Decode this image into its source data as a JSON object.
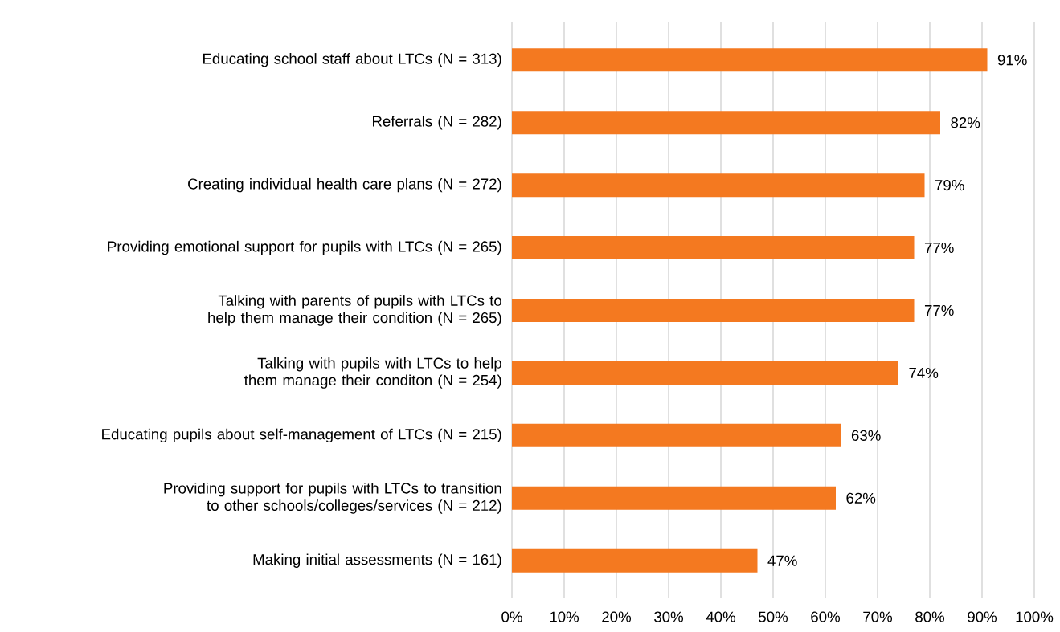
{
  "chart_data": {
    "type": "bar",
    "orientation": "horizontal",
    "categories": [
      "Educating school staff about LTCs (N = 313)",
      "Referrals (N = 282)",
      "Creating individual health care plans (N = 272)",
      "Providing emotional support for pupils with LTCs (N = 265)",
      "Talking with parents of pupils with LTCs to help them manage their condition (N = 265)",
      "Talking with pupils with LTCs to help them manage their conditon (N = 254)",
      "Educating pupils about self-management of LTCs (N = 215)",
      "Providing support for pupils with LTCs to transition to other schools/colleges/services (N = 212)",
      "Making initial assessments (N = 161)"
    ],
    "values": [
      91,
      82,
      79,
      77,
      77,
      74,
      63,
      62,
      47
    ],
    "value_labels": [
      "91%",
      "82%",
      "79%",
      "77%",
      "77%",
      "74%",
      "63%",
      "62%",
      "47%"
    ],
    "color": "#f47920",
    "xlim": [
      0,
      100
    ],
    "xticks": [
      {
        "value": 0,
        "label": "0%"
      },
      {
        "value": 10,
        "label": "10%"
      },
      {
        "value": 20,
        "label": "20%"
      },
      {
        "value": 30,
        "label": "30%"
      },
      {
        "value": 40,
        "label": "40%"
      },
      {
        "value": 50,
        "label": "50%"
      },
      {
        "value": 60,
        "label": "60%"
      },
      {
        "value": 70,
        "label": "70%"
      },
      {
        "value": 80,
        "label": "80%"
      },
      {
        "value": 90,
        "label": "90%"
      },
      {
        "value": 100,
        "label": "100%"
      }
    ],
    "grid": "x"
  }
}
